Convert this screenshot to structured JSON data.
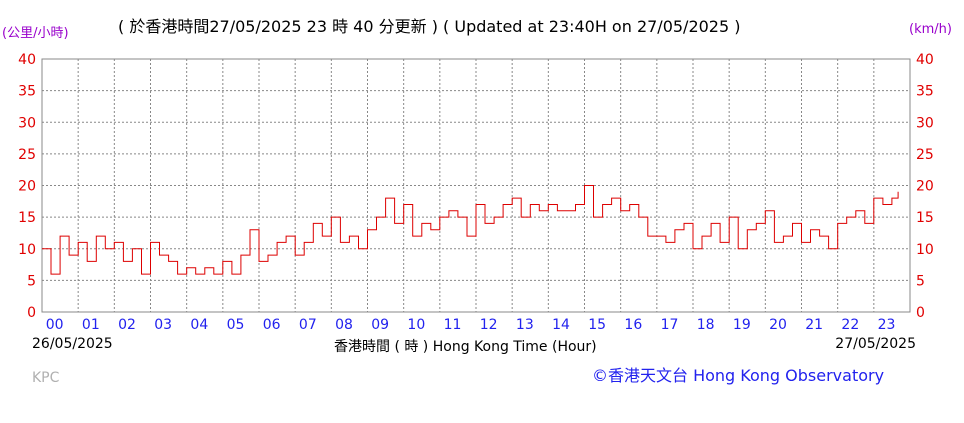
{
  "header": {
    "unit_left": "(公里/小時)",
    "unit_right": "(km/h)",
    "updated": "( 於香港時間27/05/2025 23 時 40 分更新 ) ( Updated at 23:40H on 27/05/2025 )"
  },
  "footer": {
    "date_start": "26/05/2025",
    "date_end": "27/05/2025",
    "xlabel": "香港時間 ( 時 )  Hong Kong Time (Hour)",
    "station": "KPC",
    "credit": "©香港天文台 Hong Kong Observatory"
  },
  "chart_data": {
    "type": "line",
    "title": "",
    "xlabel": "香港時間 ( 時 )  Hong Kong Time (Hour)",
    "ylabel": "(公里/小時) (km/h)",
    "ylim": [
      0,
      40
    ],
    "yticks": [
      "0",
      "5",
      "10",
      "15",
      "20",
      "25",
      "30",
      "35",
      "40"
    ],
    "xlim": [
      0,
      24
    ],
    "xticks": [
      "00",
      "01",
      "02",
      "03",
      "04",
      "05",
      "06",
      "07",
      "08",
      "09",
      "10",
      "11",
      "12",
      "13",
      "14",
      "15",
      "16",
      "17",
      "18",
      "19",
      "20",
      "21",
      "22",
      "23"
    ],
    "grid": true,
    "color": "#dd0000",
    "series": [
      {
        "x": [
          0,
          0.25,
          0.5,
          0.75,
          1,
          1.25,
          1.5,
          1.75,
          2,
          2.25,
          2.5,
          2.75,
          3,
          3.25,
          3.5,
          3.75,
          4,
          4.25,
          4.5,
          4.75,
          5,
          5.25,
          5.5,
          5.75,
          6,
          6.25,
          6.5,
          6.75,
          7,
          7.25,
          7.5,
          7.75,
          8,
          8.25,
          8.5,
          8.75,
          9,
          9.25,
          9.5,
          9.75,
          10,
          10.25,
          10.5,
          10.75,
          11,
          11.25,
          11.5,
          11.75,
          12,
          12.25,
          12.5,
          12.75,
          13,
          13.25,
          13.5,
          13.75,
          14,
          14.25,
          14.5,
          14.75,
          15,
          15.25,
          15.5,
          15.75,
          16,
          16.25,
          16.5,
          16.75,
          17,
          17.25,
          17.5,
          17.75,
          18,
          18.25,
          18.5,
          18.75,
          19,
          19.25,
          19.5,
          19.75,
          20,
          20.25,
          20.5,
          20.75,
          21,
          21.25,
          21.5,
          21.75,
          22,
          22.25,
          22.5,
          22.75,
          23,
          23.25,
          23.5,
          23.67
        ],
        "values": [
          10,
          6,
          12,
          9,
          11,
          8,
          12,
          10,
          11,
          8,
          10,
          6,
          11,
          9,
          8,
          6,
          7,
          6,
          7,
          6,
          8,
          6,
          9,
          13,
          8,
          9,
          11,
          12,
          9,
          11,
          14,
          12,
          15,
          11,
          12,
          10,
          13,
          15,
          18,
          14,
          17,
          12,
          14,
          13,
          15,
          16,
          15,
          12,
          17,
          14,
          15,
          17,
          18,
          15,
          17,
          16,
          17,
          16,
          16,
          17,
          20,
          15,
          17,
          18,
          16,
          17,
          15,
          12,
          12,
          11,
          13,
          14,
          10,
          12,
          14,
          11,
          15,
          10,
          13,
          14,
          16,
          11,
          12,
          14,
          11,
          13,
          12,
          10,
          14,
          15,
          16,
          14,
          18,
          17,
          18,
          19
        ]
      }
    ]
  }
}
